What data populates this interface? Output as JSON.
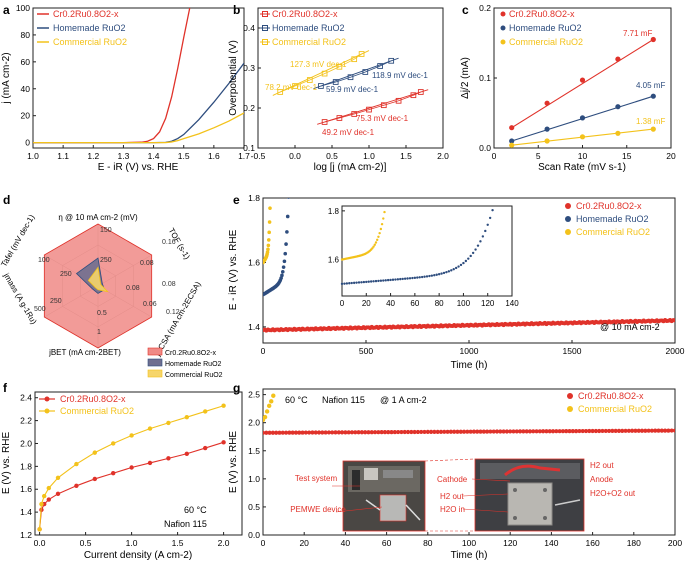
{
  "colors": {
    "cr": "#e0322a",
    "home": "#2e4d7e",
    "comm": "#f3c21b",
    "axis": "#222222",
    "radar_fill": "#f08a86",
    "radar_home": "#6f6f8f"
  },
  "legend": {
    "cr": "Cr0.2Ru0.8O2-x",
    "home": "Homemade RuO2",
    "comm": "Commercial RuO2"
  },
  "chart_data": [
    {
      "panel": "a",
      "type": "line",
      "xlabel": "E - iR (V) vs. RHE",
      "ylabel": "j (mA cm-2)",
      "xlim": [
        1.0,
        1.7
      ],
      "ylim": [
        -4,
        100
      ],
      "xticks": [
        "1.0",
        "1.1",
        "1.2",
        "1.3",
        "1.4",
        "1.5",
        "1.6",
        "1.7"
      ],
      "yticks": [
        "0",
        "20",
        "40",
        "60",
        "80",
        "100"
      ],
      "series": [
        {
          "name": "Cr0.2Ru0.8O2-x",
          "key": "cr",
          "x": [
            1.0,
            1.3,
            1.36,
            1.38,
            1.4,
            1.42,
            1.44,
            1.46,
            1.48,
            1.5,
            1.52
          ],
          "y": [
            0,
            0,
            0.3,
            1,
            3,
            8,
            18,
            34,
            55,
            78,
            100
          ]
        },
        {
          "name": "Homemade RuO2",
          "key": "home",
          "x": [
            1.0,
            1.4,
            1.44,
            1.46,
            1.48,
            1.5,
            1.55,
            1.6,
            1.65,
            1.7
          ],
          "y": [
            0,
            0,
            0.2,
            1,
            3,
            6,
            17,
            30,
            44,
            59
          ]
        },
        {
          "name": "Commercial RuO2",
          "key": "comm",
          "x": [
            1.0,
            1.44,
            1.46,
            1.48,
            1.5,
            1.55,
            1.6,
            1.65,
            1.7
          ],
          "y": [
            0,
            0,
            0.5,
            1.5,
            3,
            6.5,
            11,
            16,
            22
          ]
        }
      ]
    },
    {
      "panel": "b",
      "type": "scatter",
      "xlabel": "log [j (mA cm-2)]",
      "ylabel": "Overpotential (V)",
      "xlim": [
        -0.5,
        2.0
      ],
      "ylim": [
        0.1,
        0.45
      ],
      "xticks": [
        "-0.5",
        "0.0",
        "0.5",
        "1.0",
        "1.5",
        "2.0"
      ],
      "yticks": [
        "0.1",
        "0.2",
        "0.3",
        "0.4"
      ],
      "series": [
        {
          "name": "Cr0.2Ru0.8O2-x",
          "key": "cr",
          "x": [
            0.4,
            0.6,
            0.8,
            1.0,
            1.2,
            1.4,
            1.6,
            1.7
          ],
          "y": [
            0.165,
            0.175,
            0.185,
            0.196,
            0.207,
            0.218,
            0.232,
            0.24
          ]
        },
        {
          "name": "Homemade RuO2",
          "key": "home",
          "x": [
            0.35,
            0.55,
            0.75,
            0.95,
            1.15,
            1.3
          ],
          "y": [
            0.255,
            0.265,
            0.277,
            0.29,
            0.305,
            0.318
          ]
        },
        {
          "name": "Commercial RuO2",
          "key": "comm",
          "x": [
            -0.2,
            0.0,
            0.2,
            0.4,
            0.6,
            0.8,
            0.9
          ],
          "y": [
            0.24,
            0.255,
            0.27,
            0.286,
            0.303,
            0.322,
            0.335
          ]
        }
      ],
      "annotations": [
        "127.3 mV dec-1",
        "78.2 mV dec-1",
        "118.9 mV dec-1",
        "59.9 mV dec-1",
        "75.3 mV dec-1",
        "49.2 mV dec-1"
      ]
    },
    {
      "panel": "c",
      "type": "scatter",
      "xlabel": "Scan Rate (mV s-1)",
      "ylabel": "Δj/2 (mA)",
      "xlim": [
        0,
        20
      ],
      "ylim": [
        0,
        0.2
      ],
      "xticks": [
        "0",
        "5",
        "10",
        "15",
        "20"
      ],
      "yticks": [
        "0.0",
        "0.1",
        "0.2"
      ],
      "series": [
        {
          "name": "Cr0.2Ru0.8O2-x",
          "key": "cr",
          "x": [
            2,
            6,
            10,
            14,
            18
          ],
          "y": [
            0.029,
            0.064,
            0.097,
            0.127,
            0.155
          ]
        },
        {
          "name": "Homemade RuO2",
          "key": "home",
          "x": [
            2,
            6,
            10,
            14,
            18
          ],
          "y": [
            0.01,
            0.027,
            0.043,
            0.059,
            0.074
          ]
        },
        {
          "name": "Commercial RuO2",
          "key": "comm",
          "x": [
            2,
            6,
            10,
            14,
            18
          ],
          "y": [
            0.004,
            0.01,
            0.016,
            0.021,
            0.027
          ]
        }
      ],
      "annotations": [
        "7.71 mF",
        "4.05 mF",
        "1.38 mF"
      ]
    },
    {
      "panel": "d",
      "type": "radar",
      "axes": [
        "η @ 10 mA cm-2 (mV)",
        "TOF (s-1)",
        "jECSA (mA cm-2ECSA)",
        "jBET (mA cm-2BET)",
        "jmass (A g-1Ru)",
        "Tafel (mV dec-1)"
      ],
      "ring_labels": [
        "150",
        "250",
        "0.16",
        "0.08",
        "0.12",
        "0.06",
        "1",
        "0.5",
        "500",
        "250",
        "100",
        "250",
        "0.08",
        "0.08"
      ],
      "series": [
        {
          "name": "Cr0.2Ru0.8O2-x",
          "key": "cr",
          "values": [
            1,
            1,
            1,
            1,
            1,
            1
          ]
        },
        {
          "name": "Homemade RuO2",
          "key": "home",
          "values": [
            0.45,
            0.08,
            0.12,
            0.12,
            0.1,
            0.4
          ]
        },
        {
          "name": "Commercial RuO2",
          "key": "comm",
          "values": [
            0.3,
            0.05,
            0.18,
            0.06,
            0.05,
            0.18
          ]
        }
      ]
    },
    {
      "panel": "e",
      "type": "line",
      "xlabel": "Time (h)",
      "ylabel": "E - iR (V) vs. RHE",
      "xlim": [
        0,
        2000
      ],
      "ylim": [
        1.35,
        1.8
      ],
      "xticks": [
        "0",
        "500",
        "1000",
        "1500",
        "2000"
      ],
      "yticks": [
        "1.4",
        "1.6",
        "1.8"
      ],
      "annotation": "@ 10 mA cm-2",
      "series": [
        {
          "name": "Cr0.2Ru0.8O2-x",
          "key": "cr",
          "x": [
            0,
            100,
            400,
            800,
            1200,
            1600,
            2000
          ],
          "y": [
            1.39,
            1.395,
            1.4,
            1.405,
            1.41,
            1.415,
            1.42
          ]
        },
        {
          "name": "Homemade RuO2",
          "key": "home",
          "x": [
            0,
            20,
            60,
            90,
            110,
            125
          ],
          "y": [
            1.5,
            1.51,
            1.53,
            1.56,
            1.62,
            1.77
          ]
        },
        {
          "name": "Commercial RuO2",
          "key": "comm",
          "x": [
            0,
            10,
            20,
            30,
            35
          ],
          "y": [
            1.6,
            1.61,
            1.63,
            1.67,
            1.76
          ]
        }
      ],
      "inset": {
        "xlim": [
          0,
          140
        ],
        "ylim": [
          1.45,
          1.82
        ],
        "xticks": [
          "0",
          "20",
          "40",
          "60",
          "80",
          "100",
          "120",
          "140"
        ],
        "yticks": [
          "1.6",
          "1.8"
        ]
      }
    },
    {
      "panel": "f",
      "type": "line",
      "xlabel": "Current density (A cm-2)",
      "ylabel": "E (V) vs. RHE",
      "xlim": [
        -0.05,
        2.2
      ],
      "ylim": [
        1.2,
        2.45
      ],
      "xticks": [
        "0.0",
        "0.5",
        "1.0",
        "1.5",
        "2.0"
      ],
      "yticks": [
        "1.2",
        "1.4",
        "1.6",
        "1.8",
        "2.0",
        "2.2",
        "2.4"
      ],
      "annotations": [
        "60 °C",
        "Nafion 115"
      ],
      "series": [
        {
          "name": "Cr0.2Ru0.8O2-x",
          "key": "cr",
          "x": [
            0,
            0.02,
            0.05,
            0.1,
            0.2,
            0.4,
            0.6,
            0.8,
            1.0,
            1.2,
            1.4,
            1.6,
            1.8,
            2.0
          ],
          "y": [
            1.25,
            1.42,
            1.47,
            1.51,
            1.56,
            1.63,
            1.69,
            1.74,
            1.79,
            1.83,
            1.87,
            1.91,
            1.96,
            2.01
          ]
        },
        {
          "name": "Commercial RuO2",
          "key": "comm",
          "x": [
            0,
            0.02,
            0.05,
            0.1,
            0.2,
            0.4,
            0.6,
            0.8,
            1.0,
            1.2,
            1.4,
            1.6,
            1.8,
            2.0
          ],
          "y": [
            1.25,
            1.47,
            1.54,
            1.61,
            1.7,
            1.82,
            1.92,
            2.0,
            2.07,
            2.13,
            2.18,
            2.23,
            2.28,
            2.33
          ]
        }
      ]
    },
    {
      "panel": "g",
      "type": "line",
      "xlabel": "Time (h)",
      "ylabel": "E (V) vs. RHE",
      "xlim": [
        0,
        200
      ],
      "ylim": [
        0,
        2.6
      ],
      "xticks": [
        "0",
        "20",
        "40",
        "60",
        "80",
        "100",
        "120",
        "140",
        "160",
        "180",
        "200"
      ],
      "yticks": [
        "0.0",
        "0.5",
        "1.0",
        "1.5",
        "2.0",
        "2.5"
      ],
      "annotations": [
        "60 °C",
        "Nafion 115",
        "@ 1 A cm-2"
      ],
      "series": [
        {
          "name": "Cr0.2Ru0.8O2-x",
          "key": "cr",
          "x": [
            0,
            50,
            100,
            150,
            200
          ],
          "y": [
            1.82,
            1.83,
            1.84,
            1.85,
            1.86
          ]
        },
        {
          "name": "Commercial RuO2",
          "key": "comm",
          "x": [
            0,
            1,
            2,
            3,
            4,
            5
          ],
          "y": [
            2.05,
            2.1,
            2.2,
            2.3,
            2.38,
            2.48
          ]
        }
      ],
      "photo_labels": [
        "Test system",
        "PEMWE device",
        "Cathode",
        "H2 out",
        "H2O in",
        "H2 out",
        "Anode",
        "H2O+O2 out"
      ]
    }
  ],
  "panels": [
    "a",
    "b",
    "c",
    "d",
    "e",
    "f",
    "g"
  ]
}
